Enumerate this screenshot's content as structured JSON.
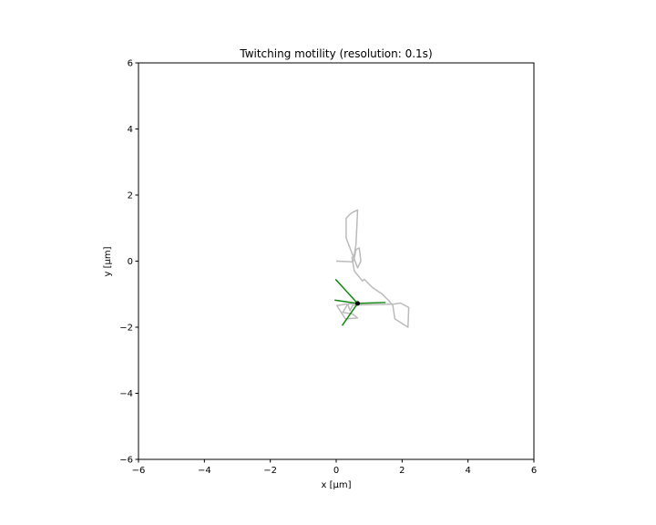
{
  "chart_data": {
    "type": "line",
    "title": "Twitching motility (resolution: 0.1s)",
    "xlabel": "x [μm]",
    "ylabel": "y [μm]",
    "xlim": [
      -6,
      6
    ],
    "ylim": [
      -6,
      6
    ],
    "xticks": [
      -6,
      -4,
      -2,
      0,
      2,
      4,
      6
    ],
    "yticks": [
      -6,
      -4,
      -2,
      0,
      2,
      4,
      6
    ],
    "grid": false,
    "legend": "none",
    "colors": {
      "trajectory": "#bbbbbb",
      "pili": "#118811",
      "cell": "#000000",
      "axes": "#000000",
      "background": "#ffffff"
    },
    "trajectory": {
      "x": [
        0.0,
        0.5,
        0.55,
        0.6,
        0.7,
        0.75,
        0.65,
        0.3,
        0.3,
        0.45,
        0.65,
        0.62,
        0.6,
        0.55,
        0.48,
        0.55,
        0.8,
        0.85,
        1.1,
        1.4,
        1.6,
        1.72,
        1.78,
        2.18,
        2.2,
        1.95,
        1.75,
        0.5,
        0.42,
        0.35,
        0.2,
        0.5,
        0.65,
        0.28,
        0.02,
        0.3,
        0.65
      ],
      "y": [
        0.0,
        -0.02,
        0.1,
        0.35,
        0.4,
        0.0,
        -0.2,
        0.7,
        1.3,
        1.45,
        1.55,
        0.9,
        0.5,
        0.2,
        0.1,
        -0.3,
        -0.6,
        -0.55,
        -0.8,
        -1.0,
        -1.2,
        -1.35,
        -1.75,
        -2.0,
        -1.4,
        -1.27,
        -1.3,
        -1.33,
        -1.5,
        -1.3,
        -1.55,
        -1.6,
        -1.72,
        -1.75,
        -1.35,
        -1.3,
        -1.28
      ]
    },
    "pili": [
      {
        "x": [
          0.65,
          -0.02
        ],
        "y": [
          -1.28,
          -0.55
        ]
      },
      {
        "x": [
          0.65,
          -0.05
        ],
        "y": [
          -1.28,
          -1.18
        ]
      },
      {
        "x": [
          0.65,
          1.5
        ],
        "y": [
          -1.28,
          -1.25
        ]
      },
      {
        "x": [
          0.65,
          0.18
        ],
        "y": [
          -1.28,
          -1.95
        ]
      }
    ],
    "cell_position": {
      "x": 0.65,
      "y": -1.28
    }
  }
}
